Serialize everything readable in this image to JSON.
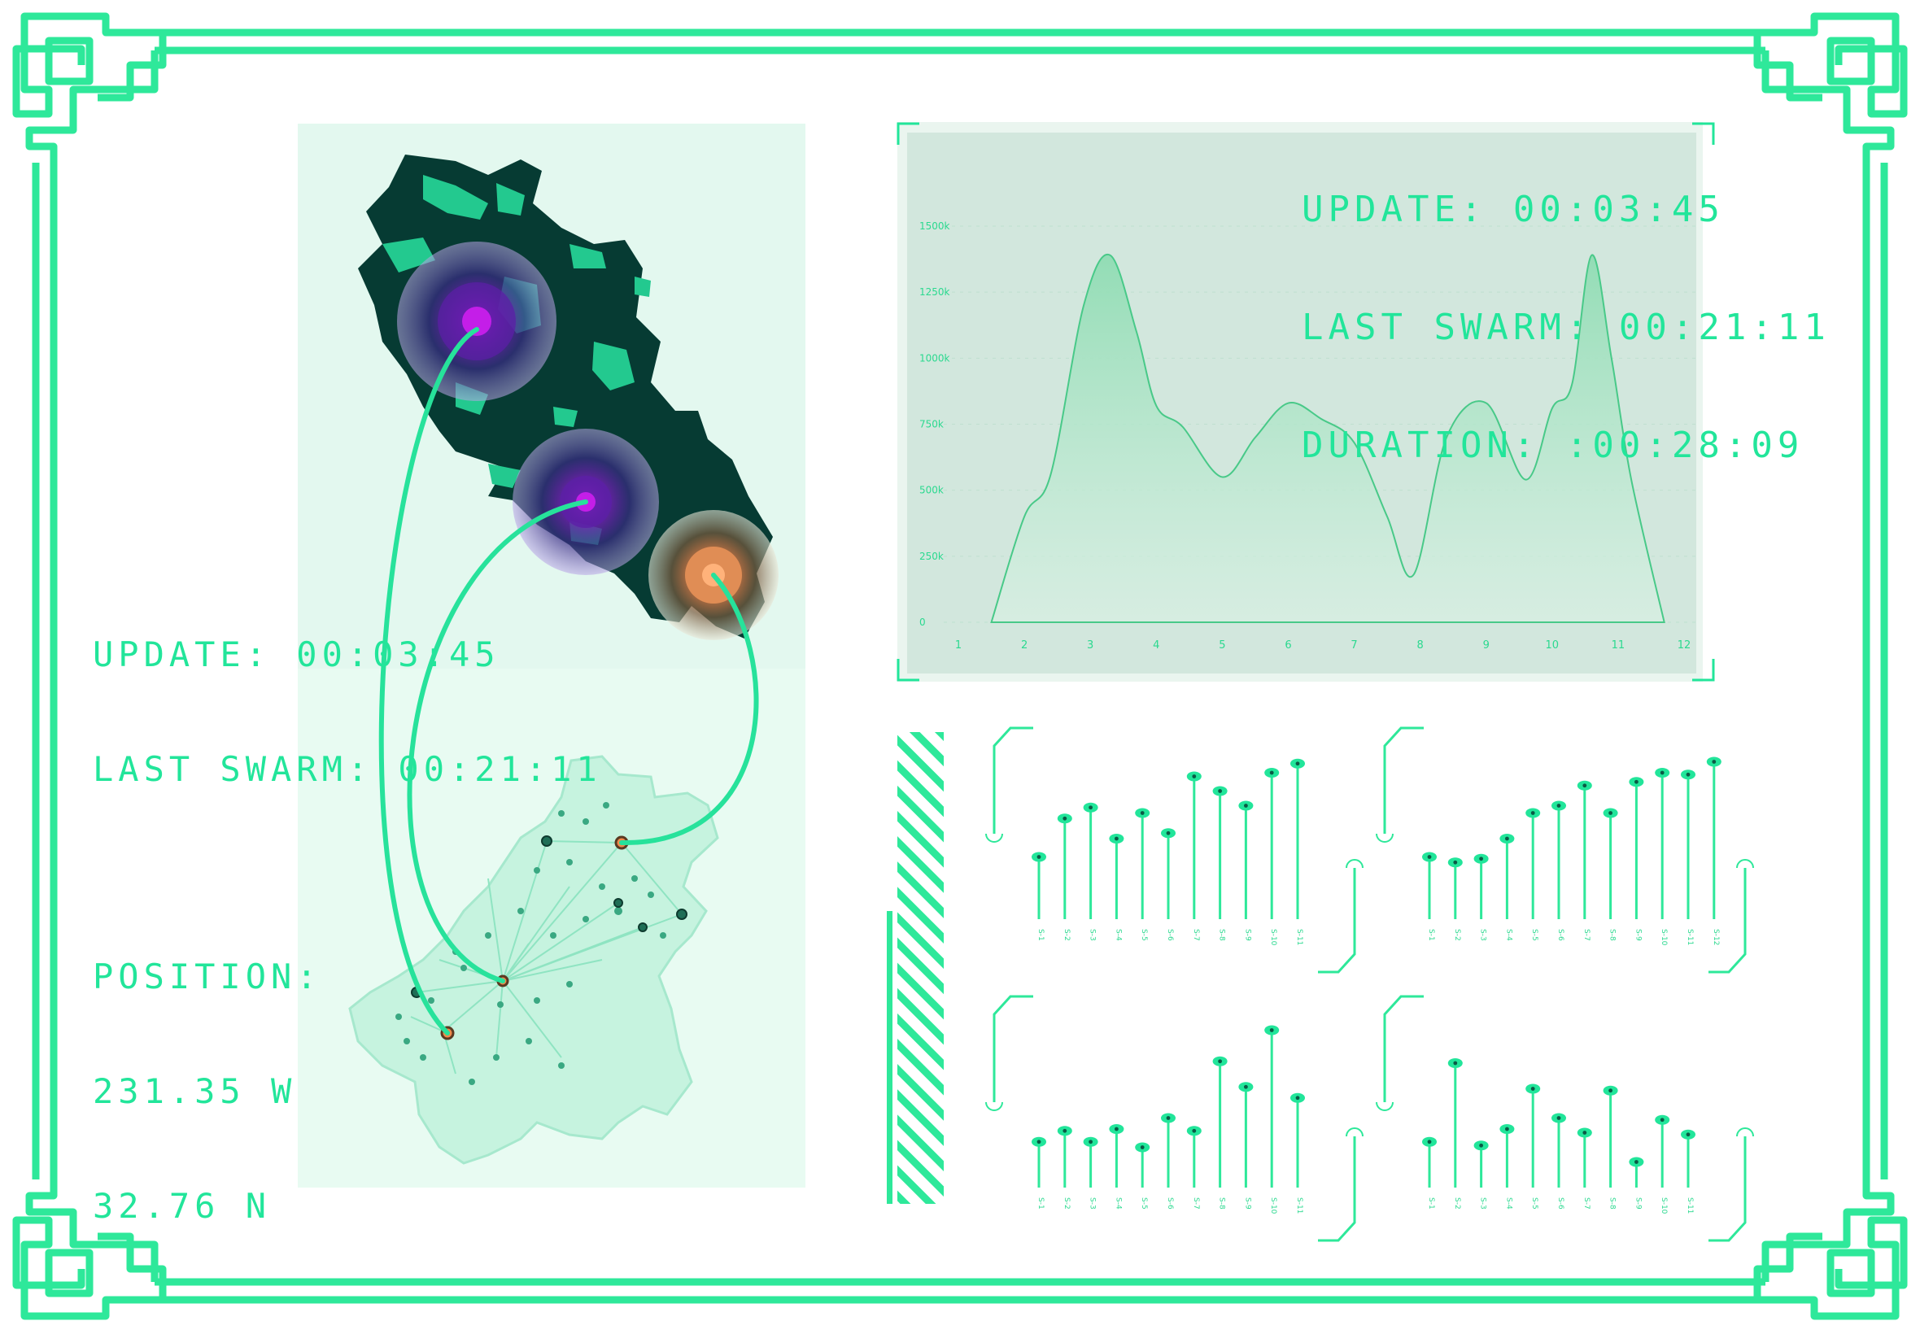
{
  "colors": {
    "accent": "#22e59a",
    "frame": "#2ee89a",
    "panel_bg": "#e6faf1",
    "chart_bg": "#d3e8de",
    "map_dark": "#063b33",
    "map_light": "#c9f5e3",
    "purple_hot": "#9a12c7",
    "orange_hot": "#f08a4b"
  },
  "left_readout": {
    "update": "UPDATE: 00:03:45",
    "last_swarm": "LAST SWARM: 00:21:11",
    "position_label": "POSITION:",
    "lon": "231.35 W",
    "lat": "32.76 N"
  },
  "chart_readout": {
    "update": "UPDATE: 00:03:45",
    "last_swarm": "LAST SWARM: 00:21:11",
    "duration": "DURATION: :00:28:09"
  },
  "chart_data": [
    {
      "type": "area",
      "x": [
        1,
        2,
        3,
        4,
        5,
        6,
        7,
        8,
        9,
        10,
        11,
        12
      ],
      "x_ticks": [
        "1",
        "2",
        "3",
        "4",
        "5",
        "6",
        "7",
        "8",
        "9",
        "10",
        "11",
        "12"
      ],
      "y_ticks": [
        "0",
        "250k",
        "500k",
        "750k",
        "1000k",
        "1250k",
        "1500k"
      ],
      "ylim": [
        0,
        1500000
      ],
      "series": [
        {
          "points": [
            [
              1.5,
              0
            ],
            [
              2.0,
              400000
            ],
            [
              2.4,
              560000
            ],
            [
              2.9,
              1200000
            ],
            [
              3.3,
              1390000
            ],
            [
              3.7,
              1100000
            ],
            [
              4.0,
              820000
            ],
            [
              4.4,
              740000
            ],
            [
              5.0,
              550000
            ],
            [
              5.5,
              700000
            ],
            [
              6.0,
              830000
            ],
            [
              6.5,
              770000
            ],
            [
              7.0,
              680000
            ],
            [
              7.5,
              400000
            ],
            [
              7.9,
              180000
            ],
            [
              8.4,
              700000
            ],
            [
              9.0,
              830000
            ],
            [
              9.6,
              540000
            ],
            [
              10.0,
              810000
            ],
            [
              10.3,
              900000
            ],
            [
              10.6,
              1390000
            ],
            [
              10.9,
              1000000
            ],
            [
              11.2,
              540000
            ],
            [
              11.7,
              0
            ]
          ]
        }
      ],
      "grid": true
    },
    {
      "type": "lollipop",
      "values": [
        34,
        55,
        61,
        44,
        58,
        47,
        78,
        70,
        62,
        80,
        85
      ],
      "x_ticks": [
        "S-1",
        "S-2",
        "S-3",
        "S-4",
        "S-5",
        "S-6",
        "S-7",
        "S-8",
        "S-9",
        "S-10",
        "S-11"
      ],
      "ylim": [
        0,
        100
      ]
    },
    {
      "type": "lollipop",
      "values": [
        34,
        31,
        33,
        44,
        58,
        62,
        73,
        58,
        75,
        80,
        79,
        86
      ],
      "x_ticks": [
        "S-1",
        "S-2",
        "S-3",
        "S-4",
        "S-5",
        "S-6",
        "S-7",
        "S-8",
        "S-9",
        "S-10",
        "S-11",
        "S-12"
      ],
      "ylim": [
        0,
        100
      ]
    },
    {
      "type": "lollipop",
      "values": [
        25,
        31,
        25,
        32,
        22,
        38,
        31,
        69,
        55,
        86,
        49
      ],
      "x_ticks": [
        "S-1",
        "S-2",
        "S-3",
        "S-4",
        "S-5",
        "S-6",
        "S-7",
        "S-8",
        "S-9",
        "S-10",
        "S-11"
      ],
      "ylim": [
        0,
        100
      ]
    },
    {
      "type": "lollipop",
      "values": [
        25,
        68,
        23,
        32,
        54,
        38,
        30,
        53,
        14,
        37,
        29
      ],
      "x_ticks": [
        "S-1",
        "S-2",
        "S-3",
        "S-4",
        "S-5",
        "S-6",
        "S-7",
        "S-8",
        "S-9",
        "S-10",
        "S-11"
      ],
      "ylim": [
        0,
        100
      ]
    }
  ]
}
